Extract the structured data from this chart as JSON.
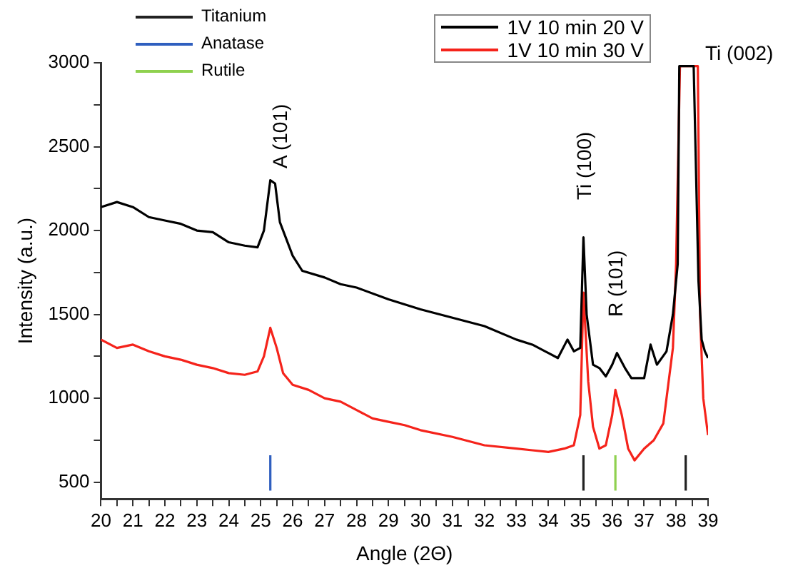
{
  "chart_data": {
    "type": "line",
    "xlabel": "Angle (2Θ)",
    "ylabel": "Intensity (a.u.)",
    "xlim": [
      20,
      39
    ],
    "ylim": [
      400,
      3000
    ],
    "xticks": [
      20,
      {
        "value": 20.5,
        "label": null
      },
      21,
      {
        "value": 21.5,
        "label": null
      },
      22,
      {
        "value": 22.5,
        "label": null
      },
      23,
      {
        "value": 23.5,
        "label": null
      },
      24,
      {
        "value": 24.5,
        "label": null
      },
      25,
      {
        "value": 25.5,
        "label": null
      },
      26,
      {
        "value": 26.5,
        "label": null
      },
      27,
      {
        "value": 27.5,
        "label": null
      },
      28,
      {
        "value": 28.5,
        "label": null
      },
      29,
      {
        "value": 29.5,
        "label": null
      },
      30,
      {
        "value": 30.5,
        "label": null
      },
      31,
      {
        "value": 31.5,
        "label": null
      },
      32,
      {
        "value": 32.5,
        "label": null
      },
      33,
      {
        "value": 33.5,
        "label": null
      },
      34,
      {
        "value": 34.5,
        "label": null
      },
      35,
      {
        "value": 35.5,
        "label": null
      },
      36,
      {
        "value": 36.5,
        "label": null
      },
      37,
      {
        "value": 37.5,
        "label": null
      },
      38,
      {
        "value": 38.5,
        "label": null
      },
      39
    ],
    "yticks": [
      500,
      {
        "value": 750,
        "label": null
      },
      1000,
      {
        "value": 1250,
        "label": null
      },
      1500,
      {
        "value": 1750,
        "label": null
      },
      2000,
      {
        "value": 2250,
        "label": null
      },
      2500,
      {
        "value": 2750,
        "label": null
      },
      3000
    ],
    "grid": false,
    "legend": "top right",
    "marker": "none",
    "line_style": "solid",
    "series": [
      {
        "name": "1V 10 min 20 V",
        "color": "#000000",
        "x": [
          20,
          20.5,
          21,
          21.5,
          22,
          22.5,
          23,
          23.5,
          24,
          24.5,
          24.9,
          25.1,
          25.3,
          25.45,
          25.6,
          25.8,
          26,
          26.3,
          27,
          27.5,
          28,
          29,
          30,
          31,
          32,
          33,
          33.5,
          34,
          34.3,
          34.6,
          34.8,
          35,
          35.1,
          35.2,
          35.4,
          35.6,
          35.8,
          36,
          36.15,
          36.4,
          36.6,
          37,
          37.2,
          37.4,
          37.7,
          37.9,
          38.05,
          38.1,
          38.55,
          38.7,
          38.8,
          38.9,
          39
        ],
        "values": [
          2140,
          2170,
          2140,
          2080,
          2060,
          2040,
          2000,
          1990,
          1930,
          1910,
          1900,
          2000,
          2300,
          2280,
          2050,
          1950,
          1850,
          1760,
          1720,
          1680,
          1660,
          1590,
          1530,
          1480,
          1430,
          1350,
          1320,
          1270,
          1240,
          1350,
          1280,
          1300,
          1960,
          1500,
          1200,
          1180,
          1130,
          1200,
          1270,
          1180,
          1120,
          1120,
          1320,
          1200,
          1280,
          1500,
          1800,
          2980,
          2980,
          1700,
          1350,
          1280,
          1240
        ]
      },
      {
        "name": "1V 10 min 30 V",
        "color": "#f5231b",
        "x": [
          20,
          20.5,
          21,
          21.5,
          22,
          22.5,
          23,
          23.5,
          24,
          24.5,
          24.9,
          25.1,
          25.3,
          25.5,
          25.7,
          26,
          26.5,
          27,
          27.5,
          28,
          28.5,
          29,
          29.5,
          30,
          31,
          32,
          33,
          33.5,
          34,
          34.5,
          34.8,
          35,
          35.1,
          35.25,
          35.4,
          35.6,
          35.8,
          36,
          36.1,
          36.3,
          36.5,
          36.7,
          37,
          37.3,
          37.6,
          37.9,
          38,
          38.12,
          38.68,
          38.75,
          38.85,
          39
        ],
        "values": [
          1350,
          1300,
          1320,
          1280,
          1250,
          1230,
          1200,
          1180,
          1150,
          1140,
          1160,
          1250,
          1420,
          1300,
          1150,
          1080,
          1050,
          1000,
          980,
          930,
          880,
          860,
          840,
          810,
          770,
          720,
          700,
          690,
          680,
          700,
          720,
          900,
          1630,
          1100,
          830,
          700,
          720,
          900,
          1050,
          900,
          700,
          630,
          700,
          750,
          850,
          1300,
          1800,
          2980,
          2980,
          1500,
          1000,
          780
        ]
      },
      {
        "name": "Titanium",
        "color": "#222222",
        "x": [
          35.1,
          35.1
        ],
        "values": [
          450,
          660
        ]
      },
      {
        "color": "#222222",
        "x": [
          38.3,
          38.3
        ],
        "values": [
          450,
          660
        ]
      },
      {
        "name": "Anatase",
        "color": "#2f5fbf",
        "x": [
          25.3,
          25.3
        ],
        "values": [
          450,
          660
        ]
      },
      {
        "name": "Rutile",
        "color": "#8fd14f",
        "x": [
          36.1,
          36.1
        ],
        "values": [
          450,
          660
        ]
      }
    ],
    "annotations": [
      "A (101)",
      "Ti (100)",
      "R (101)",
      "Ti (002)"
    ]
  }
}
